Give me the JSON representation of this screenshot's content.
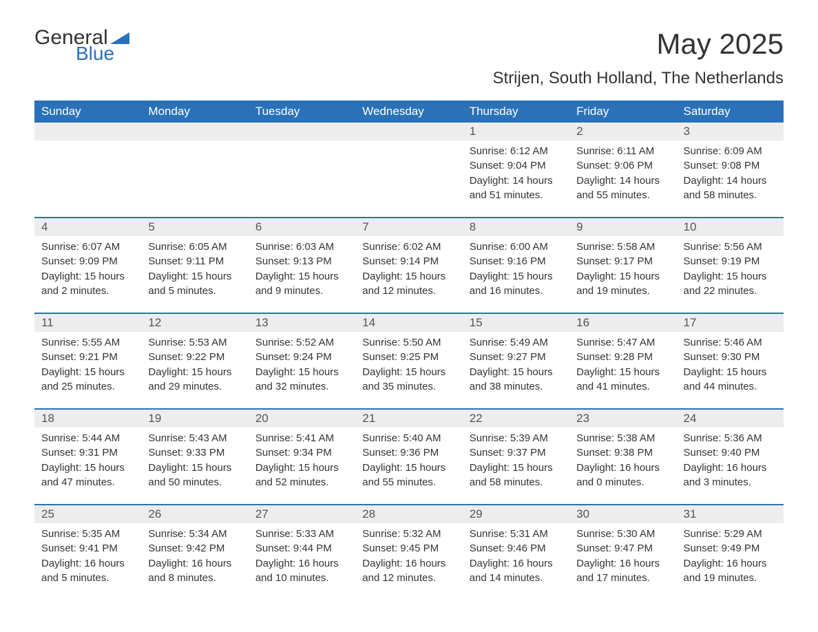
{
  "logo": {
    "text1": "General",
    "text2": "Blue"
  },
  "title": "May 2025",
  "subtitle": "Strijen, South Holland, The Netherlands",
  "colors": {
    "header_bg": "#2a71b8",
    "header_text": "#ffffff",
    "daynum_bg": "#ededed",
    "border_top": "#2a71b8",
    "body_text": "#333333",
    "logo_blue": "#2a71b8"
  },
  "fonts": {
    "title_size_pt": 32,
    "subtitle_size_pt": 18,
    "header_size_pt": 13,
    "cell_size_pt": 11
  },
  "weekdays": [
    "Sunday",
    "Monday",
    "Tuesday",
    "Wednesday",
    "Thursday",
    "Friday",
    "Saturday"
  ],
  "weeks": [
    [
      null,
      null,
      null,
      null,
      {
        "n": "1",
        "sr": "Sunrise: 6:12 AM",
        "ss": "Sunset: 9:04 PM",
        "d1": "Daylight: 14 hours",
        "d2": "and 51 minutes."
      },
      {
        "n": "2",
        "sr": "Sunrise: 6:11 AM",
        "ss": "Sunset: 9:06 PM",
        "d1": "Daylight: 14 hours",
        "d2": "and 55 minutes."
      },
      {
        "n": "3",
        "sr": "Sunrise: 6:09 AM",
        "ss": "Sunset: 9:08 PM",
        "d1": "Daylight: 14 hours",
        "d2": "and 58 minutes."
      }
    ],
    [
      {
        "n": "4",
        "sr": "Sunrise: 6:07 AM",
        "ss": "Sunset: 9:09 PM",
        "d1": "Daylight: 15 hours",
        "d2": "and 2 minutes."
      },
      {
        "n": "5",
        "sr": "Sunrise: 6:05 AM",
        "ss": "Sunset: 9:11 PM",
        "d1": "Daylight: 15 hours",
        "d2": "and 5 minutes."
      },
      {
        "n": "6",
        "sr": "Sunrise: 6:03 AM",
        "ss": "Sunset: 9:13 PM",
        "d1": "Daylight: 15 hours",
        "d2": "and 9 minutes."
      },
      {
        "n": "7",
        "sr": "Sunrise: 6:02 AM",
        "ss": "Sunset: 9:14 PM",
        "d1": "Daylight: 15 hours",
        "d2": "and 12 minutes."
      },
      {
        "n": "8",
        "sr": "Sunrise: 6:00 AM",
        "ss": "Sunset: 9:16 PM",
        "d1": "Daylight: 15 hours",
        "d2": "and 16 minutes."
      },
      {
        "n": "9",
        "sr": "Sunrise: 5:58 AM",
        "ss": "Sunset: 9:17 PM",
        "d1": "Daylight: 15 hours",
        "d2": "and 19 minutes."
      },
      {
        "n": "10",
        "sr": "Sunrise: 5:56 AM",
        "ss": "Sunset: 9:19 PM",
        "d1": "Daylight: 15 hours",
        "d2": "and 22 minutes."
      }
    ],
    [
      {
        "n": "11",
        "sr": "Sunrise: 5:55 AM",
        "ss": "Sunset: 9:21 PM",
        "d1": "Daylight: 15 hours",
        "d2": "and 25 minutes."
      },
      {
        "n": "12",
        "sr": "Sunrise: 5:53 AM",
        "ss": "Sunset: 9:22 PM",
        "d1": "Daylight: 15 hours",
        "d2": "and 29 minutes."
      },
      {
        "n": "13",
        "sr": "Sunrise: 5:52 AM",
        "ss": "Sunset: 9:24 PM",
        "d1": "Daylight: 15 hours",
        "d2": "and 32 minutes."
      },
      {
        "n": "14",
        "sr": "Sunrise: 5:50 AM",
        "ss": "Sunset: 9:25 PM",
        "d1": "Daylight: 15 hours",
        "d2": "and 35 minutes."
      },
      {
        "n": "15",
        "sr": "Sunrise: 5:49 AM",
        "ss": "Sunset: 9:27 PM",
        "d1": "Daylight: 15 hours",
        "d2": "and 38 minutes."
      },
      {
        "n": "16",
        "sr": "Sunrise: 5:47 AM",
        "ss": "Sunset: 9:28 PM",
        "d1": "Daylight: 15 hours",
        "d2": "and 41 minutes."
      },
      {
        "n": "17",
        "sr": "Sunrise: 5:46 AM",
        "ss": "Sunset: 9:30 PM",
        "d1": "Daylight: 15 hours",
        "d2": "and 44 minutes."
      }
    ],
    [
      {
        "n": "18",
        "sr": "Sunrise: 5:44 AM",
        "ss": "Sunset: 9:31 PM",
        "d1": "Daylight: 15 hours",
        "d2": "and 47 minutes."
      },
      {
        "n": "19",
        "sr": "Sunrise: 5:43 AM",
        "ss": "Sunset: 9:33 PM",
        "d1": "Daylight: 15 hours",
        "d2": "and 50 minutes."
      },
      {
        "n": "20",
        "sr": "Sunrise: 5:41 AM",
        "ss": "Sunset: 9:34 PM",
        "d1": "Daylight: 15 hours",
        "d2": "and 52 minutes."
      },
      {
        "n": "21",
        "sr": "Sunrise: 5:40 AM",
        "ss": "Sunset: 9:36 PM",
        "d1": "Daylight: 15 hours",
        "d2": "and 55 minutes."
      },
      {
        "n": "22",
        "sr": "Sunrise: 5:39 AM",
        "ss": "Sunset: 9:37 PM",
        "d1": "Daylight: 15 hours",
        "d2": "and 58 minutes."
      },
      {
        "n": "23",
        "sr": "Sunrise: 5:38 AM",
        "ss": "Sunset: 9:38 PM",
        "d1": "Daylight: 16 hours",
        "d2": "and 0 minutes."
      },
      {
        "n": "24",
        "sr": "Sunrise: 5:36 AM",
        "ss": "Sunset: 9:40 PM",
        "d1": "Daylight: 16 hours",
        "d2": "and 3 minutes."
      }
    ],
    [
      {
        "n": "25",
        "sr": "Sunrise: 5:35 AM",
        "ss": "Sunset: 9:41 PM",
        "d1": "Daylight: 16 hours",
        "d2": "and 5 minutes."
      },
      {
        "n": "26",
        "sr": "Sunrise: 5:34 AM",
        "ss": "Sunset: 9:42 PM",
        "d1": "Daylight: 16 hours",
        "d2": "and 8 minutes."
      },
      {
        "n": "27",
        "sr": "Sunrise: 5:33 AM",
        "ss": "Sunset: 9:44 PM",
        "d1": "Daylight: 16 hours",
        "d2": "and 10 minutes."
      },
      {
        "n": "28",
        "sr": "Sunrise: 5:32 AM",
        "ss": "Sunset: 9:45 PM",
        "d1": "Daylight: 16 hours",
        "d2": "and 12 minutes."
      },
      {
        "n": "29",
        "sr": "Sunrise: 5:31 AM",
        "ss": "Sunset: 9:46 PM",
        "d1": "Daylight: 16 hours",
        "d2": "and 14 minutes."
      },
      {
        "n": "30",
        "sr": "Sunrise: 5:30 AM",
        "ss": "Sunset: 9:47 PM",
        "d1": "Daylight: 16 hours",
        "d2": "and 17 minutes."
      },
      {
        "n": "31",
        "sr": "Sunrise: 5:29 AM",
        "ss": "Sunset: 9:49 PM",
        "d1": "Daylight: 16 hours",
        "d2": "and 19 minutes."
      }
    ]
  ]
}
